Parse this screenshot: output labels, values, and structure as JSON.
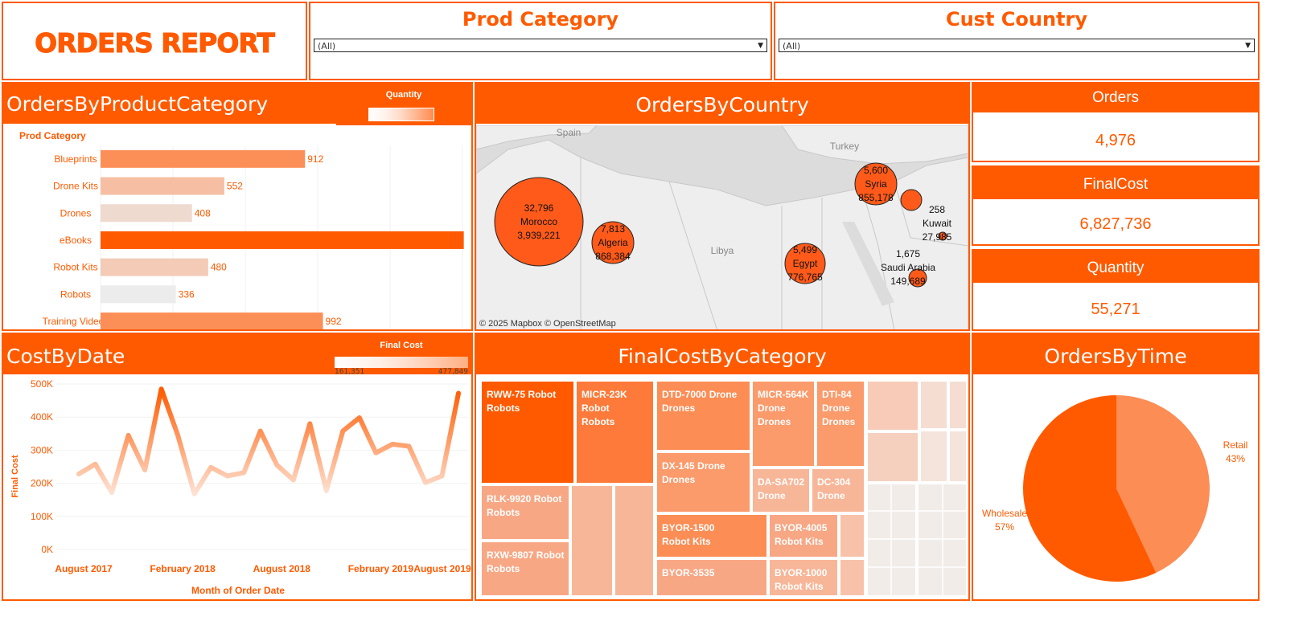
{
  "title": "ORDERS REPORT",
  "filters": {
    "category": {
      "label": "Prod Category",
      "value": "(All)"
    },
    "country": {
      "label": "Cust Country",
      "value": "(All)"
    }
  },
  "kpis": {
    "orders": {
      "label": "Orders",
      "value": "4,976"
    },
    "final_cost": {
      "label": "FinalCost",
      "value": "6,827,736"
    },
    "quantity": {
      "label": "Quantity",
      "value": "55,271"
    }
  },
  "panels": {
    "by_category": "OrdersByProductCategory",
    "by_country": "OrdersByCountry",
    "cost_by_date": "CostByDate",
    "cost_by_category": "FinalCostByCategory",
    "by_time": "OrdersByTime"
  },
  "legends": {
    "quantity": "Quantity",
    "final_cost": "Final Cost",
    "final_cost_min": "161,351",
    "final_cost_max": "477,849"
  },
  "map": {
    "labels": [
      "Spain",
      "Turkey",
      "Libya"
    ],
    "attribution": "© 2025 Mapbox  © OpenStreetMap"
  },
  "colors": {
    "accent": "#ff5a00"
  },
  "chart_data": [
    {
      "type": "bar",
      "title": "OrdersByProductCategory",
      "ylabel": "Prod Category",
      "categories": [
        "Blueprints",
        "Drone Kits",
        "Drones",
        "eBooks",
        "Robot Kits",
        "Robots",
        "Training Videos"
      ],
      "values": [
        912,
        552,
        408,
        1620,
        480,
        336,
        992
      ],
      "value_labels": [
        "912",
        "552",
        "408",
        "",
        "480",
        "336",
        "992"
      ],
      "colors": [
        "#fc8f58",
        "#f6bfa3",
        "#efdad0",
        "#ff5a00",
        "#f3cbb6",
        "#ececec",
        "#fc8f58"
      ],
      "xlim": [
        0,
        1650
      ]
    },
    {
      "type": "scatter",
      "title": "OrdersByCountry",
      "points": [
        {
          "name": "Morocco",
          "quantity": "32,796",
          "cost": "3,939,221",
          "r": 55
        },
        {
          "name": "Algeria",
          "quantity": "7,813",
          "cost": "868,384",
          "r": 26
        },
        {
          "name": "Syria",
          "quantity": "5,600",
          "cost": "855,178",
          "r": 26
        },
        {
          "name": "Egypt",
          "quantity": "5,499",
          "cost": "776,765",
          "r": 25
        },
        {
          "name": "",
          "quantity": "",
          "cost": "",
          "r": 13
        },
        {
          "name": "Kuwait",
          "quantity": "258",
          "cost": "27,985",
          "r": 5
        },
        {
          "name": "Saudi Arabia",
          "quantity": "1,675",
          "cost": "149,689",
          "r": 11
        }
      ]
    },
    {
      "type": "line",
      "title": "CostByDate",
      "xlabel": "Month of Order Date",
      "ylabel": "Final Cost",
      "x_ticks": [
        "August 2017",
        "February 2018",
        "August 2018",
        "February 2019",
        "August 2019"
      ],
      "y_ticks": [
        "0K",
        "100K",
        "200K",
        "300K",
        "400K",
        "500K"
      ],
      "ylim": [
        0,
        500000
      ],
      "values": [
        228000,
        258000,
        172000,
        345000,
        240000,
        485000,
        345000,
        168000,
        248000,
        222000,
        232000,
        358000,
        255000,
        210000,
        380000,
        178000,
        358000,
        398000,
        292000,
        318000,
        312000,
        202000,
        222000,
        472000
      ]
    },
    {
      "type": "treemap",
      "title": "FinalCostByCategory",
      "items": [
        {
          "product": "RWW-75 Robot",
          "category": "Robots"
        },
        {
          "product": "MICR-23K Robot",
          "category": "Robots"
        },
        {
          "product": "RLK-9920 Robot",
          "category": "Robots"
        },
        {
          "product": "RXW-9807 Robot",
          "category": "Robots"
        },
        {
          "product": "DTD-7000 Drone",
          "category": "Drones"
        },
        {
          "product": "MICR-564K Drone",
          "category": "Drones"
        },
        {
          "product": "DTI-84 Drone",
          "category": "Drones"
        },
        {
          "product": "DX-145 Drone",
          "category": "Drones"
        },
        {
          "product": "DA-SA702 Drone",
          "category": ""
        },
        {
          "product": "DC-304 Drone",
          "category": ""
        },
        {
          "product": "BYOR-1500",
          "category": "Robot Kits"
        },
        {
          "product": "BYOR-4005",
          "category": "Robot Kits"
        },
        {
          "product": "BYOR-3535",
          "category": ""
        },
        {
          "product": "BYOR-1000",
          "category": "Robot Kits"
        }
      ]
    },
    {
      "type": "pie",
      "title": "OrdersByTime",
      "slices": [
        {
          "name": "Retail",
          "value": 43,
          "label": "43%",
          "color": "#fb8d55"
        },
        {
          "name": "Wholesale",
          "value": 57,
          "label": "57%",
          "color": "#ff5a00"
        }
      ]
    }
  ]
}
